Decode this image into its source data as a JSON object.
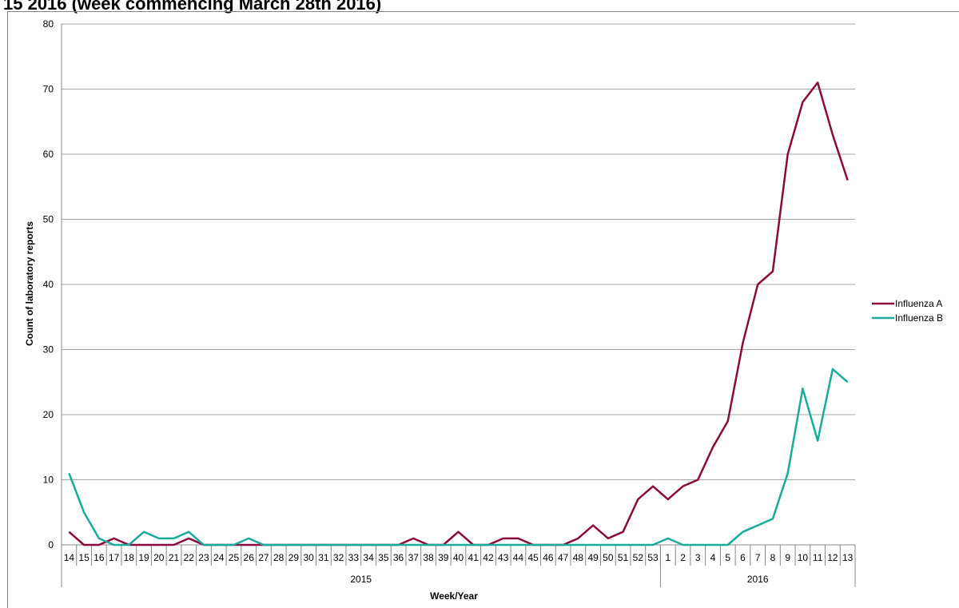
{
  "chart_data": {
    "type": "line",
    "title": "15 2016 (week commencing March 28th 2016)",
    "xlabel": "Week/Year",
    "ylabel": "Count of laboratory reports",
    "ylim": [
      0,
      80
    ],
    "yticks": [
      0,
      10,
      20,
      30,
      40,
      50,
      60,
      70,
      80
    ],
    "grid": true,
    "legend_position": "right",
    "categories": [
      "14",
      "15",
      "16",
      "17",
      "18",
      "19",
      "20",
      "21",
      "22",
      "23",
      "24",
      "25",
      "26",
      "27",
      "28",
      "29",
      "30",
      "31",
      "32",
      "33",
      "34",
      "35",
      "36",
      "37",
      "38",
      "39",
      "40",
      "41",
      "42",
      "43",
      "44",
      "45",
      "46",
      "47",
      "48",
      "49",
      "50",
      "51",
      "52",
      "53",
      "1",
      "2",
      "3",
      "4",
      "5",
      "6",
      "7",
      "8",
      "9",
      "10",
      "11",
      "12",
      "13"
    ],
    "years": [
      {
        "label": "2015",
        "count": 40
      },
      {
        "label": "2016",
        "count": 13
      }
    ],
    "series": [
      {
        "name": "Influenza A",
        "color": "#8b0a3e",
        "values": [
          2,
          0,
          0,
          1,
          0,
          0,
          0,
          0,
          1,
          0,
          0,
          0,
          0,
          0,
          0,
          0,
          0,
          0,
          0,
          0,
          0,
          0,
          0,
          1,
          0,
          0,
          2,
          0,
          0,
          1,
          1,
          0,
          0,
          0,
          1,
          3,
          1,
          2,
          7,
          9,
          7,
          9,
          10,
          15,
          19,
          31,
          40,
          42,
          60,
          68,
          71,
          63,
          56
        ]
      },
      {
        "name": "Influenza B",
        "color": "#1aab9b",
        "values": [
          11,
          5,
          1,
          0,
          0,
          2,
          1,
          1,
          2,
          0,
          0,
          0,
          1,
          0,
          0,
          0,
          0,
          0,
          0,
          0,
          0,
          0,
          0,
          0,
          0,
          0,
          0,
          0,
          0,
          0,
          0,
          0,
          0,
          0,
          0,
          0,
          0,
          0,
          0,
          0,
          1,
          0,
          0,
          0,
          0,
          2,
          3,
          4,
          11,
          24,
          16,
          27,
          25
        ]
      }
    ]
  }
}
